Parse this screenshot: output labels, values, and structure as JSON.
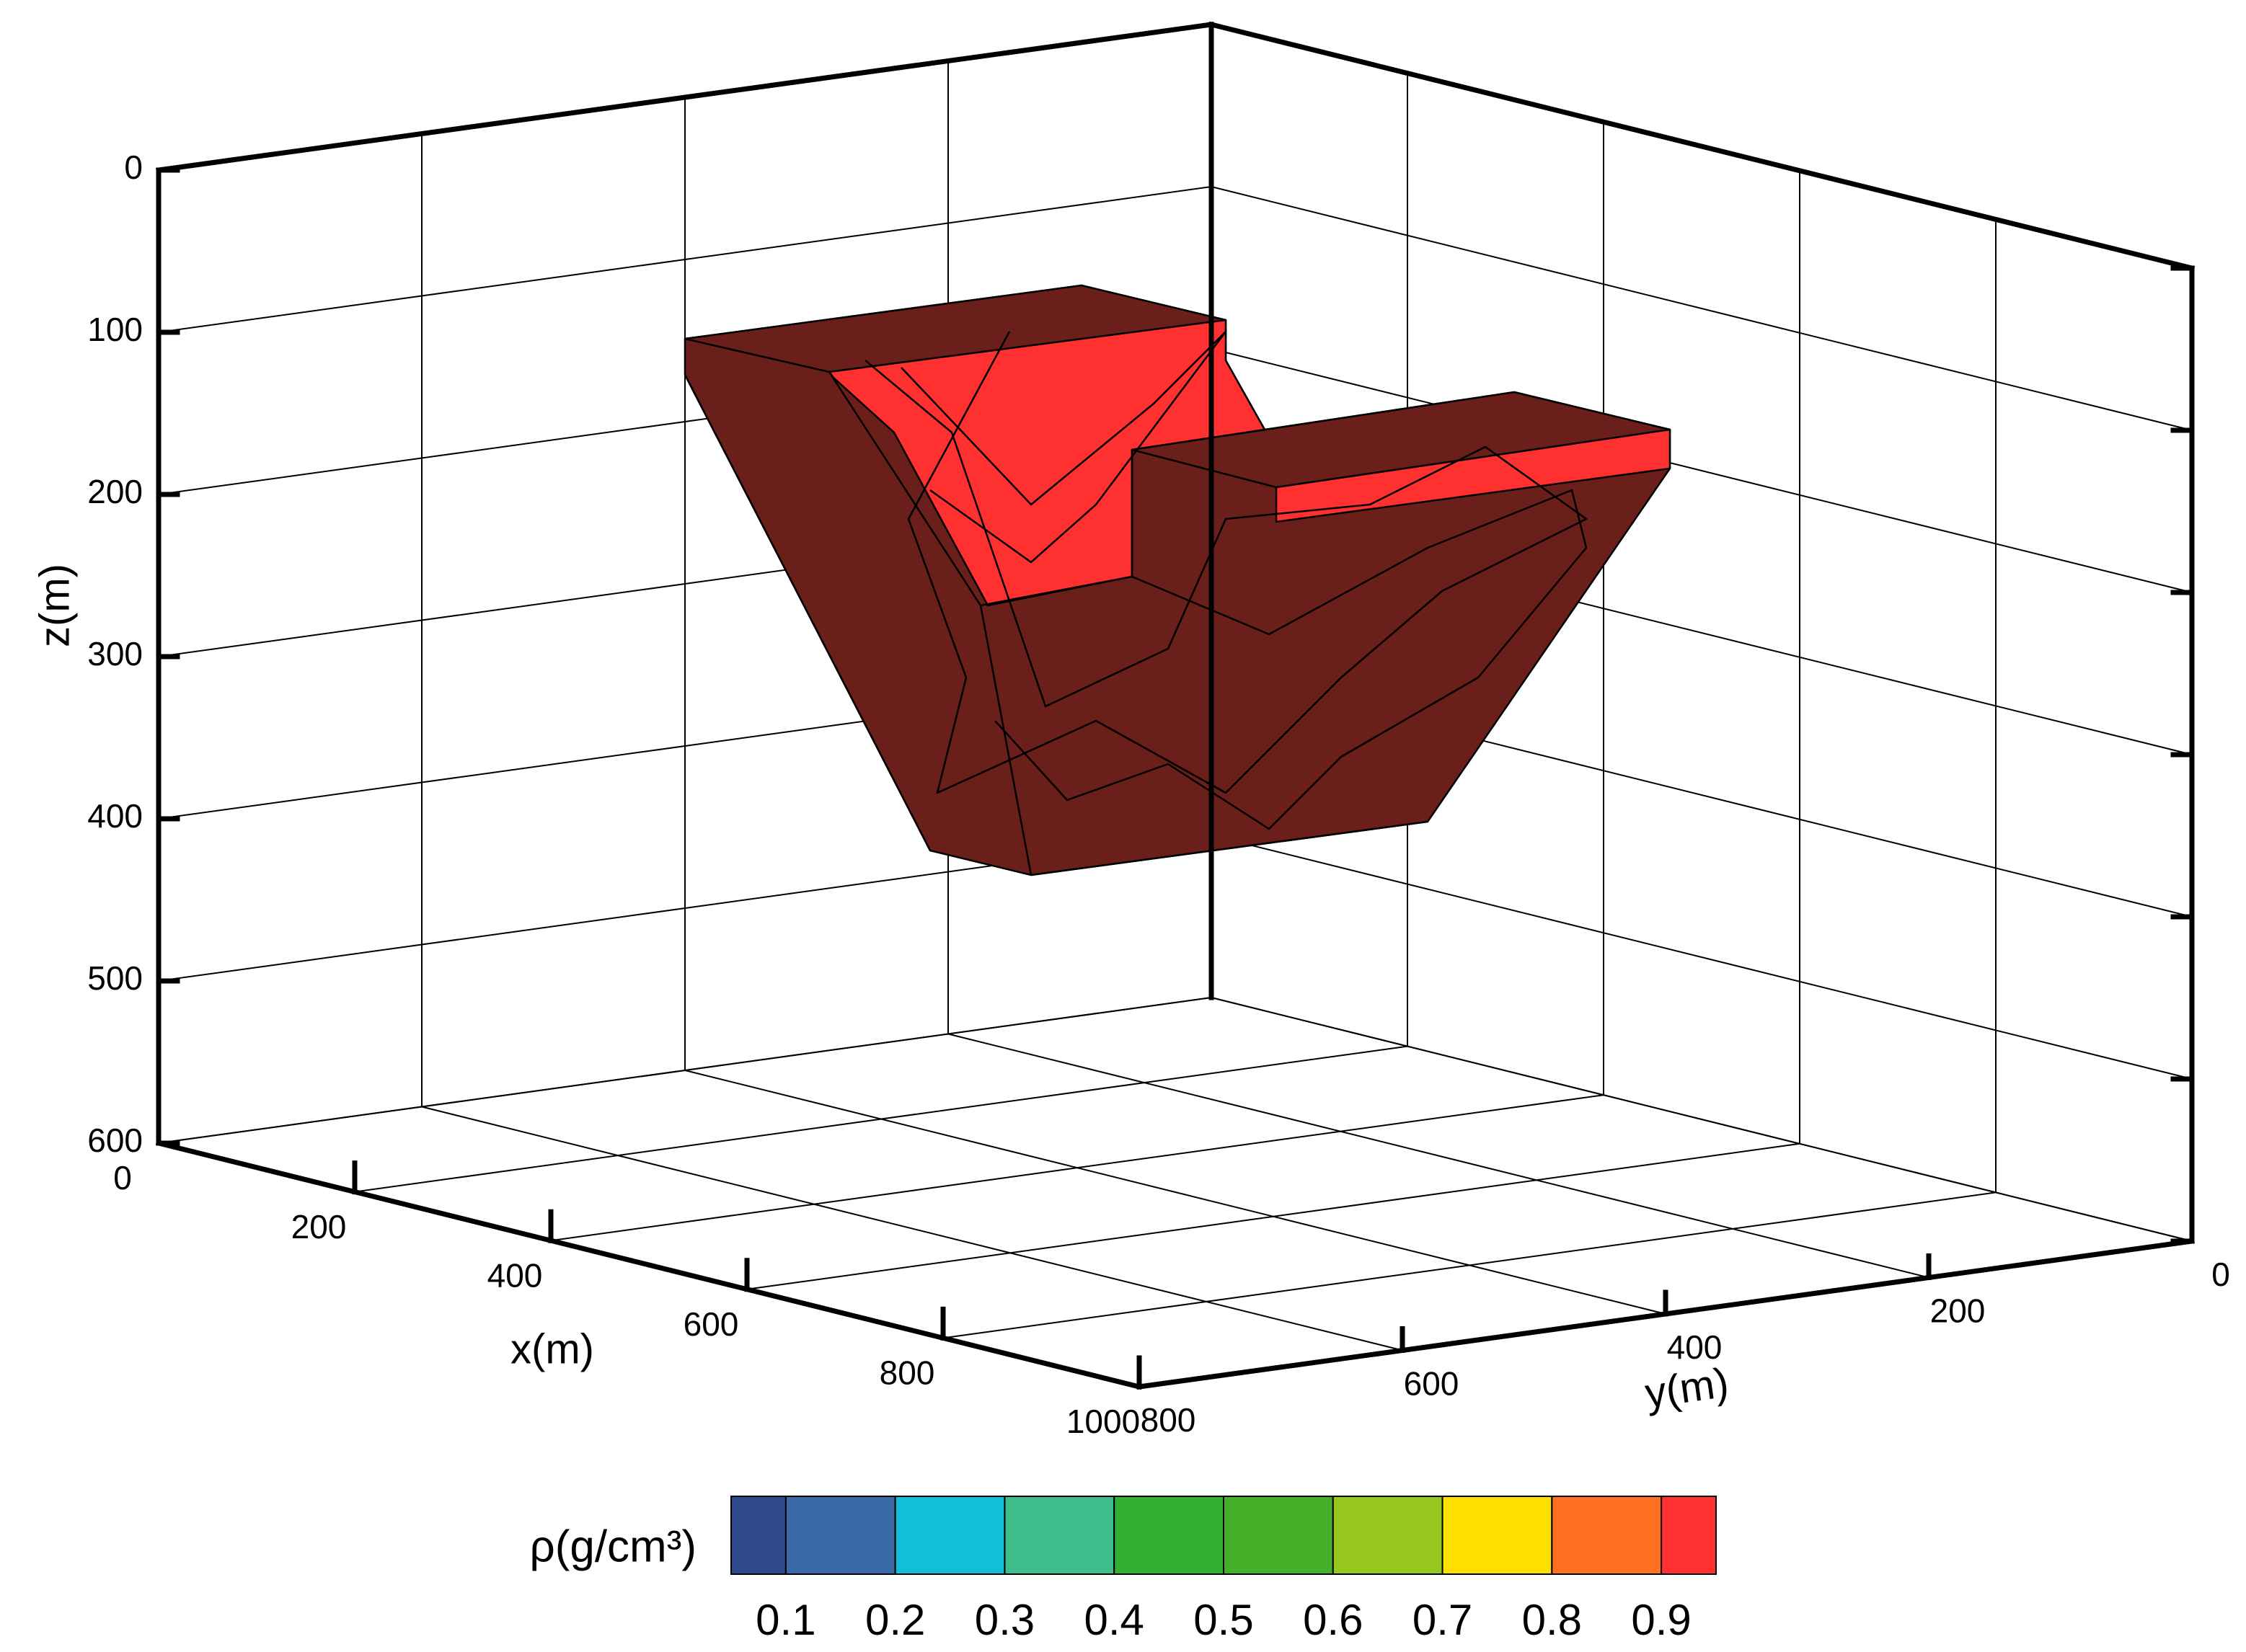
{
  "chart_data": {
    "type": "mesh3d",
    "xlabel": "x(m)",
    "ylabel": "y(m)",
    "zlabel": "z(m)",
    "xlim": [
      0,
      1000
    ],
    "xticks": [
      0,
      200,
      400,
      600,
      800,
      1000
    ],
    "ylim": [
      0,
      800
    ],
    "yticks": [
      0,
      200,
      400,
      600,
      800
    ],
    "zlim": [
      0,
      600
    ],
    "zticks": [
      0,
      100,
      200,
      300,
      400,
      500,
      600
    ],
    "grid": true,
    "colorbar": {
      "label": "ρ(g/cm³)",
      "levels": [
        0.05,
        0.1,
        0.2,
        0.3,
        0.4,
        0.5,
        0.6,
        0.7,
        0.8,
        0.9,
        0.95
      ],
      "colors": [
        "#2e4a8c",
        "#3a6aa8",
        "#12bfd8",
        "#3dbc8c",
        "#33b032",
        "#44b02a",
        "#96c81e",
        "#fde000",
        "#ff7020",
        "#ff3030"
      ],
      "ticks": [
        0.1,
        0.2,
        0.3,
        0.4,
        0.5,
        0.6,
        0.7,
        0.8,
        0.9
      ]
    }
  }
}
